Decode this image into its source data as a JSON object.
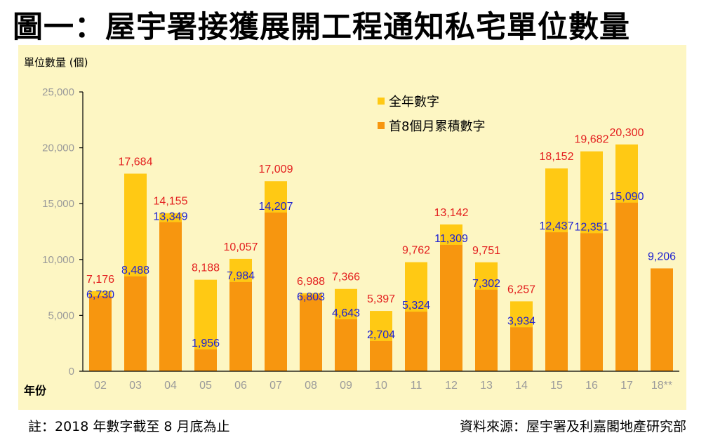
{
  "title": "圖一：屋宇署接獲展開工程通知私宅單位數量",
  "footnote": "註：2018 年數字截至 8 月底為止",
  "source": "資料來源：屋宇署及利嘉閣地產研究部",
  "colors": {
    "full_year": "#ffc914",
    "first_8_months": "#f7960f",
    "full_year_label": "#e31e1e",
    "first_8_label": "#1f23d0",
    "background": "#fdf6c3"
  },
  "chart_data": {
    "type": "bar",
    "ylabel": "單位數量 (個)",
    "xlabel": "年份",
    "ylim": [
      0,
      25000
    ],
    "yticks": [
      "0",
      "5,000",
      "10,000",
      "15,000",
      "20,000",
      "25,000"
    ],
    "ytick_values": [
      0,
      5000,
      10000,
      15000,
      20000,
      25000
    ],
    "grid": false,
    "legend_position": "top-right",
    "categories": [
      "02",
      "03",
      "04",
      "05",
      "06",
      "07",
      "08",
      "09",
      "10",
      "11",
      "12",
      "13",
      "14",
      "15",
      "16",
      "17",
      "18**"
    ],
    "series": [
      {
        "name": "全年數字",
        "values": [
          7176,
          17684,
          14155,
          8188,
          10057,
          17009,
          6988,
          7366,
          5397,
          9762,
          13142,
          9751,
          6257,
          18152,
          19682,
          20300,
          null
        ],
        "labels": [
          "7,176",
          "17,684",
          "14,155",
          "8,188",
          "10,057",
          "17,009",
          "6,988",
          "7,366",
          "5,397",
          "9,762",
          "13,142",
          "9,751",
          "6,257",
          "18,152",
          "19,682",
          "20,300",
          ""
        ]
      },
      {
        "name": "首8個月累積數字",
        "values": [
          6730,
          8488,
          13349,
          1956,
          7984,
          14207,
          6803,
          4643,
          2704,
          5324,
          11309,
          7302,
          3934,
          12437,
          12351,
          15090,
          9206
        ],
        "labels": [
          "6,730",
          "8,488",
          "13,349",
          "1,956",
          "7,984",
          "14,207",
          "6,803",
          "4,643",
          "2,704",
          "5,324",
          "11,309",
          "7,302",
          "3,934",
          "12,437",
          "12,351",
          "15,090",
          "9,206"
        ]
      }
    ]
  }
}
